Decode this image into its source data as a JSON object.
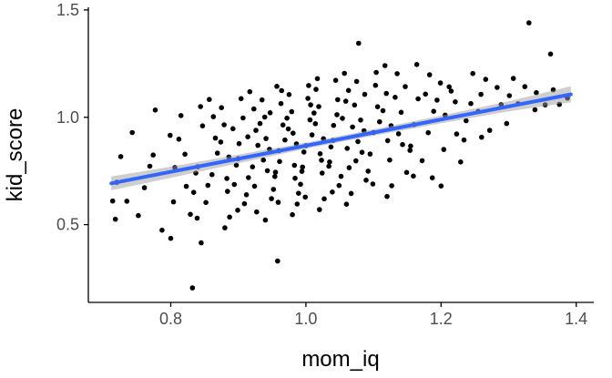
{
  "chart_data": {
    "type": "scatter",
    "title": "",
    "xlabel": "mom_iq",
    "ylabel": "kid_score",
    "xlim": [
      0.678,
      1.426
    ],
    "ylim": [
      0.1375,
      1.5125
    ],
    "x_ticks": [
      0.8,
      1.0,
      1.2,
      1.4
    ],
    "x_tick_labels": [
      "0.8",
      "1.0",
      "1.2",
      "1.4"
    ],
    "y_ticks": [
      0.5,
      1.0,
      1.5
    ],
    "y_tick_labels": [
      "0.5",
      "1.0",
      "1.5"
    ],
    "grid": false,
    "legend": "none",
    "colors": {
      "point": "#000000",
      "line": "#3366FF",
      "band": "#9e9e9e",
      "band_opacity": 0.5,
      "axis": "#000000",
      "tick_label": "#4d4d4d",
      "axis_title": "#000000",
      "background": "#ffffff"
    },
    "regression_line": {
      "x1": 0.712,
      "y1": 0.692,
      "x2": 1.392,
      "y2": 1.107,
      "slope": 0.61,
      "intercept": 0.258
    },
    "confidence_band": [
      [
        0.712,
        0.66,
        0.724
      ],
      [
        0.8,
        0.718,
        0.77
      ],
      [
        0.9,
        0.786,
        0.826
      ],
      [
        1.0,
        0.854,
        0.882
      ],
      [
        1.1,
        0.914,
        0.944
      ],
      [
        1.2,
        0.972,
        1.008
      ],
      [
        1.3,
        1.028,
        1.074
      ],
      [
        1.392,
        1.07,
        1.144
      ]
    ],
    "points": [
      [
        0.72,
        0.697
      ],
      [
        0.726,
        0.817
      ],
      [
        0.735,
        0.609
      ],
      [
        0.743,
        0.929
      ],
      [
        0.752,
        0.542
      ],
      [
        0.769,
        0.772
      ],
      [
        0.761,
        0.672
      ],
      [
        0.777,
        1.034
      ],
      [
        0.787,
        0.474
      ],
      [
        0.774,
        0.824
      ],
      [
        0.804,
        0.606
      ],
      [
        0.799,
        0.916
      ],
      [
        0.8,
        0.436
      ],
      [
        0.806,
        0.766
      ],
      [
        0.815,
        1.008
      ],
      [
        0.823,
        0.678
      ],
      [
        0.812,
        0.898
      ],
      [
        0.829,
        0.548
      ],
      [
        0.821,
        0.828
      ],
      [
        0.837,
        0.74
      ],
      [
        0.847,
        0.96
      ],
      [
        0.834,
        0.65
      ],
      [
        0.844,
        1.05
      ],
      [
        0.839,
        0.53
      ],
      [
        0.84,
        0.77
      ],
      [
        0.866,
        0.903
      ],
      [
        0.855,
        0.683
      ],
      [
        0.863,
        1.003
      ],
      [
        0.852,
        0.603
      ],
      [
        0.869,
        0.833
      ],
      [
        0.861,
        0.733
      ],
      [
        0.857,
        1.083
      ],
      [
        0.887,
        0.535
      ],
      [
        0.874,
        0.885
      ],
      [
        0.884,
        0.655
      ],
      [
        0.879,
        0.965
      ],
      [
        0.88,
        0.485
      ],
      [
        0.886,
        0.815
      ],
      [
        0.875,
        1.045
      ],
      [
        0.883,
        0.715
      ],
      [
        0.892,
        0.947
      ],
      [
        0.909,
        0.597
      ],
      [
        0.901,
        0.877
      ],
      [
        0.897,
        0.777
      ],
      [
        0.907,
        0.997
      ],
      [
        0.894,
        0.687
      ],
      [
        0.904,
        1.087
      ],
      [
        0.899,
        0.567
      ],
      [
        0.9,
        0.807
      ],
      [
        0.926,
        0.939
      ],
      [
        0.915,
        0.719
      ],
      [
        0.923,
        1.039
      ],
      [
        0.912,
        0.639
      ],
      [
        0.929,
        0.869
      ],
      [
        0.921,
        0.769
      ],
      [
        0.917,
        1.119
      ],
      [
        0.927,
        0.559
      ],
      [
        0.914,
        0.909
      ],
      [
        0.924,
        0.679
      ],
      [
        0.939,
        1.001
      ],
      [
        0.94,
        0.521
      ],
      [
        0.946,
        0.851
      ],
      [
        0.935,
        1.081
      ],
      [
        0.943,
        0.751
      ],
      [
        0.932,
        0.971
      ],
      [
        0.949,
        0.621
      ],
      [
        0.941,
        0.901
      ],
      [
        0.937,
        0.801
      ],
      [
        0.947,
        1.021
      ],
      [
        0.954,
        0.724
      ],
      [
        0.964,
        1.124
      ],
      [
        0.959,
        0.604
      ],
      [
        0.96,
        0.844
      ],
      [
        0.966,
        0.964
      ],
      [
        0.955,
        0.744
      ],
      [
        0.963,
        1.064
      ],
      [
        0.952,
        0.664
      ],
      [
        0.969,
        0.894
      ],
      [
        0.961,
        0.794
      ],
      [
        0.957,
        1.144
      ],
      [
        0.987,
        0.596
      ],
      [
        0.974,
        0.946
      ],
      [
        0.984,
        0.716
      ],
      [
        0.979,
        1.026
      ],
      [
        0.98,
        0.546
      ],
      [
        0.986,
        0.876
      ],
      [
        0.975,
        1.106
      ],
      [
        0.983,
        0.776
      ],
      [
        0.972,
        0.996
      ],
      [
        0.989,
        0.646
      ],
      [
        0.981,
        0.926
      ],
      [
        0.997,
        0.838
      ],
      [
        1.007,
        1.058
      ],
      [
        0.994,
        0.748
      ],
      [
        1.004,
        1.148
      ],
      [
        0.999,
        0.628
      ],
      [
        1.0,
        0.868
      ],
      [
        1.006,
        0.988
      ],
      [
        0.995,
        0.768
      ],
      [
        1.003,
        1.088
      ],
      [
        0.992,
        0.688
      ],
      [
        1.009,
        0.918
      ],
      [
        1.021,
        0.83
      ],
      [
        1.017,
        1.18
      ],
      [
        1.027,
        0.62
      ],
      [
        1.014,
        0.97
      ],
      [
        1.024,
        0.74
      ],
      [
        1.019,
        1.05
      ],
      [
        1.02,
        0.57
      ],
      [
        1.026,
        0.9
      ],
      [
        1.015,
        1.13
      ],
      [
        1.023,
        0.8
      ],
      [
        1.012,
        1.02
      ],
      [
        1.049,
        0.682
      ],
      [
        1.041,
        0.962
      ],
      [
        1.037,
        0.862
      ],
      [
        1.047,
        1.082
      ],
      [
        1.034,
        0.772
      ],
      [
        1.044,
        1.172
      ],
      [
        1.039,
        0.652
      ],
      [
        1.04,
        0.892
      ],
      [
        1.046,
        1.012
      ],
      [
        1.035,
        0.792
      ],
      [
        1.063,
        1.125
      ],
      [
        1.052,
        0.725
      ],
      [
        1.069,
        0.955
      ],
      [
        1.061,
        0.855
      ],
      [
        1.057,
        1.205
      ],
      [
        1.067,
        0.645
      ],
      [
        1.054,
        0.995
      ],
      [
        1.064,
        0.765
      ],
      [
        1.059,
        1.075
      ],
      [
        1.06,
        0.595
      ],
      [
        1.086,
        0.937
      ],
      [
        1.075,
        1.167
      ],
      [
        1.083,
        0.837
      ],
      [
        1.072,
        1.057
      ],
      [
        1.089,
        0.707
      ],
      [
        1.081,
        0.987
      ],
      [
        1.077,
        0.887
      ],
      [
        1.087,
        1.107
      ],
      [
        1.074,
        0.797
      ],
      [
        1.104,
        1.209
      ],
      [
        1.099,
        0.689
      ],
      [
        1.1,
        0.929
      ],
      [
        1.106,
        1.049
      ],
      [
        1.095,
        0.829
      ],
      [
        1.103,
        1.149
      ],
      [
        1.092,
        0.749
      ],
      [
        1.109,
        0.979
      ],
      [
        1.121,
        0.891
      ],
      [
        1.117,
        1.241
      ],
      [
        1.127,
        0.681
      ],
      [
        1.114,
        1.031
      ],
      [
        1.124,
        0.801
      ],
      [
        1.119,
        1.111
      ],
      [
        1.12,
        0.631
      ],
      [
        1.126,
        0.961
      ],
      [
        1.135,
        1.203
      ],
      [
        1.143,
        0.873
      ],
      [
        1.132,
        1.093
      ],
      [
        1.149,
        0.743
      ],
      [
        1.141,
        1.023
      ],
      [
        1.137,
        0.923
      ],
      [
        1.147,
        1.143
      ],
      [
        1.154,
        0.846
      ],
      [
        1.164,
        1.246
      ],
      [
        1.159,
        0.726
      ],
      [
        1.16,
        0.966
      ],
      [
        1.166,
        1.086
      ],
      [
        1.155,
        0.866
      ],
      [
        1.183,
        1.198
      ],
      [
        1.172,
        0.798
      ],
      [
        1.189,
        1.028
      ],
      [
        1.181,
        0.928
      ],
      [
        1.177,
        1.108
      ],
      [
        1.187,
        0.718
      ],
      [
        1.194,
        1.08
      ],
      [
        1.204,
        0.85
      ],
      [
        1.199,
        1.16
      ],
      [
        1.2,
        0.68
      ],
      [
        1.206,
        1.01
      ],
      [
        1.215,
        1.122
      ],
      [
        1.223,
        0.922
      ],
      [
        1.212,
        1.142
      ],
      [
        1.229,
        0.792
      ],
      [
        1.221,
        1.072
      ],
      [
        1.237,
        0.984
      ],
      [
        1.247,
        1.204
      ],
      [
        1.234,
        0.894
      ],
      [
        1.244,
        1.064
      ],
      [
        1.259,
        1.107
      ],
      [
        1.26,
        0.907
      ],
      [
        1.266,
        1.177
      ],
      [
        1.255,
        1.027
      ],
      [
        1.283,
        1.139
      ],
      [
        1.272,
        0.939
      ],
      [
        1.289,
        1.059
      ],
      [
        1.301,
        1.101
      ],
      [
        1.297,
        0.971
      ],
      [
        1.307,
        1.181
      ],
      [
        1.314,
        1.063
      ],
      [
        1.324,
        1.143
      ],
      [
        1.339,
        1.035
      ],
      [
        1.341,
        1.115
      ],
      [
        1.354,
        1.058
      ],
      [
        1.366,
        1.128
      ],
      [
        1.375,
        1.06
      ],
      [
        1.387,
        1.09
      ],
      [
        0.832,
        0.205
      ],
      [
        1.33,
        1.44
      ],
      [
        1.078,
        1.345
      ],
      [
        1.362,
        1.295
      ],
      [
        0.958,
        0.33
      ],
      [
        0.714,
        0.61
      ],
      [
        0.718,
        0.525
      ],
      [
        0.845,
        0.415
      ]
    ]
  }
}
